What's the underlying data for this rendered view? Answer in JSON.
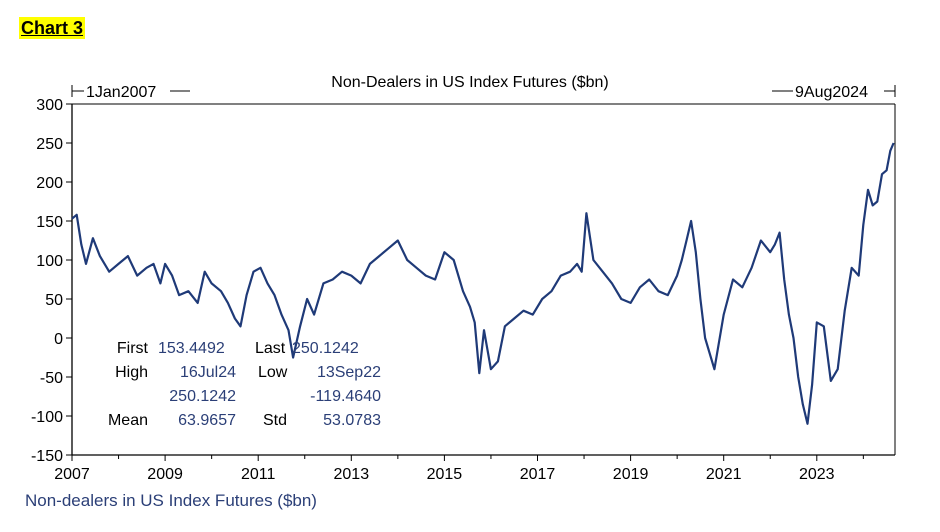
{
  "heading": "Chart 3",
  "chart_data": {
    "type": "line",
    "title": "Non-Dealers in US Index Futures ($bn)",
    "start_label": "1Jan2007",
    "end_label": "9Aug2024",
    "footer": "Non-dealers in US Index Futures ($bn)",
    "ylim": [
      -150,
      300
    ],
    "xlim": [
      2007.0,
      2024.68
    ],
    "yticks": [
      "300",
      "250",
      "200",
      "150",
      "100",
      "50",
      "0",
      "-50",
      "-100",
      "-150"
    ],
    "xticks": [
      "2007",
      "2009",
      "2011",
      "2013",
      "2015",
      "2017",
      "2019",
      "2021",
      "2023"
    ],
    "grid": false,
    "line_color": "#1f3a78",
    "stats": {
      "first_label": "First",
      "first_value": "153.4492",
      "last_label": "Last",
      "last_value": "250.1242",
      "high_label": "High",
      "high_date": "16Jul24",
      "high_value": "250.1242",
      "low_label": "Low",
      "low_date": "13Sep22",
      "low_value": "-119.4640",
      "mean_label": "Mean",
      "mean_value": "63.9657",
      "std_label": "Std",
      "std_value": "53.0783"
    },
    "series": [
      {
        "x": [
          2007.0,
          2007.1,
          2007.2,
          2007.3,
          2007.45,
          2007.6,
          2007.8,
          2008.0,
          2008.2,
          2008.4,
          2008.6,
          2008.75,
          2008.9,
          2009.0,
          2009.15,
          2009.3,
          2009.5,
          2009.7,
          2009.85,
          2010.0,
          2010.2,
          2010.35,
          2010.5,
          2010.62,
          2010.75,
          2010.9,
          2011.05,
          2011.2,
          2011.35,
          2011.5,
          2011.65,
          2011.75,
          2011.9,
          2012.05,
          2012.2,
          2012.4,
          2012.6,
          2012.8,
          2013.0,
          2013.2,
          2013.4,
          2013.6,
          2013.8,
          2014.0,
          2014.2,
          2014.4,
          2014.6,
          2014.8,
          2015.0,
          2015.2,
          2015.4,
          2015.55,
          2015.65,
          2015.75,
          2015.85,
          2016.0,
          2016.15,
          2016.3,
          2016.5,
          2016.7,
          2016.9,
          2017.1,
          2017.3,
          2017.5,
          2017.7,
          2017.85,
          2017.95,
          2018.05,
          2018.2,
          2018.4,
          2018.6,
          2018.8,
          2019.0,
          2019.2,
          2019.4,
          2019.6,
          2019.8,
          2020.0,
          2020.1,
          2020.2,
          2020.3,
          2020.4,
          2020.5,
          2020.6,
          2020.8,
          2021.0,
          2021.2,
          2021.4,
          2021.6,
          2021.8,
          2022.0,
          2022.1,
          2022.2,
          2022.3,
          2022.4,
          2022.5,
          2022.6,
          2022.7,
          2022.8,
          2022.9,
          2023.0,
          2023.15,
          2023.3,
          2023.45,
          2023.6,
          2023.75,
          2023.9,
          2024.0,
          2024.1,
          2024.2,
          2024.3,
          2024.4,
          2024.5,
          2024.58,
          2024.65
        ],
        "y": [
          153,
          158,
          120,
          95,
          128,
          105,
          85,
          95,
          105,
          80,
          90,
          95,
          70,
          95,
          80,
          55,
          60,
          45,
          85,
          70,
          60,
          45,
          25,
          15,
          55,
          85,
          90,
          70,
          55,
          30,
          10,
          -25,
          15,
          50,
          30,
          70,
          75,
          85,
          80,
          70,
          95,
          105,
          115,
          125,
          100,
          90,
          80,
          75,
          110,
          100,
          60,
          40,
          20,
          -45,
          10,
          -40,
          -30,
          15,
          25,
          35,
          30,
          50,
          60,
          80,
          85,
          95,
          85,
          160,
          100,
          85,
          70,
          50,
          45,
          65,
          75,
          60,
          55,
          80,
          100,
          125,
          150,
          110,
          50,
          0,
          -40,
          30,
          75,
          65,
          90,
          125,
          110,
          120,
          135,
          75,
          30,
          0,
          -50,
          -85,
          -110,
          -60,
          20,
          15,
          -55,
          -40,
          35,
          90,
          80,
          145,
          190,
          170,
          175,
          210,
          215,
          240,
          250
        ]
      }
    ]
  }
}
